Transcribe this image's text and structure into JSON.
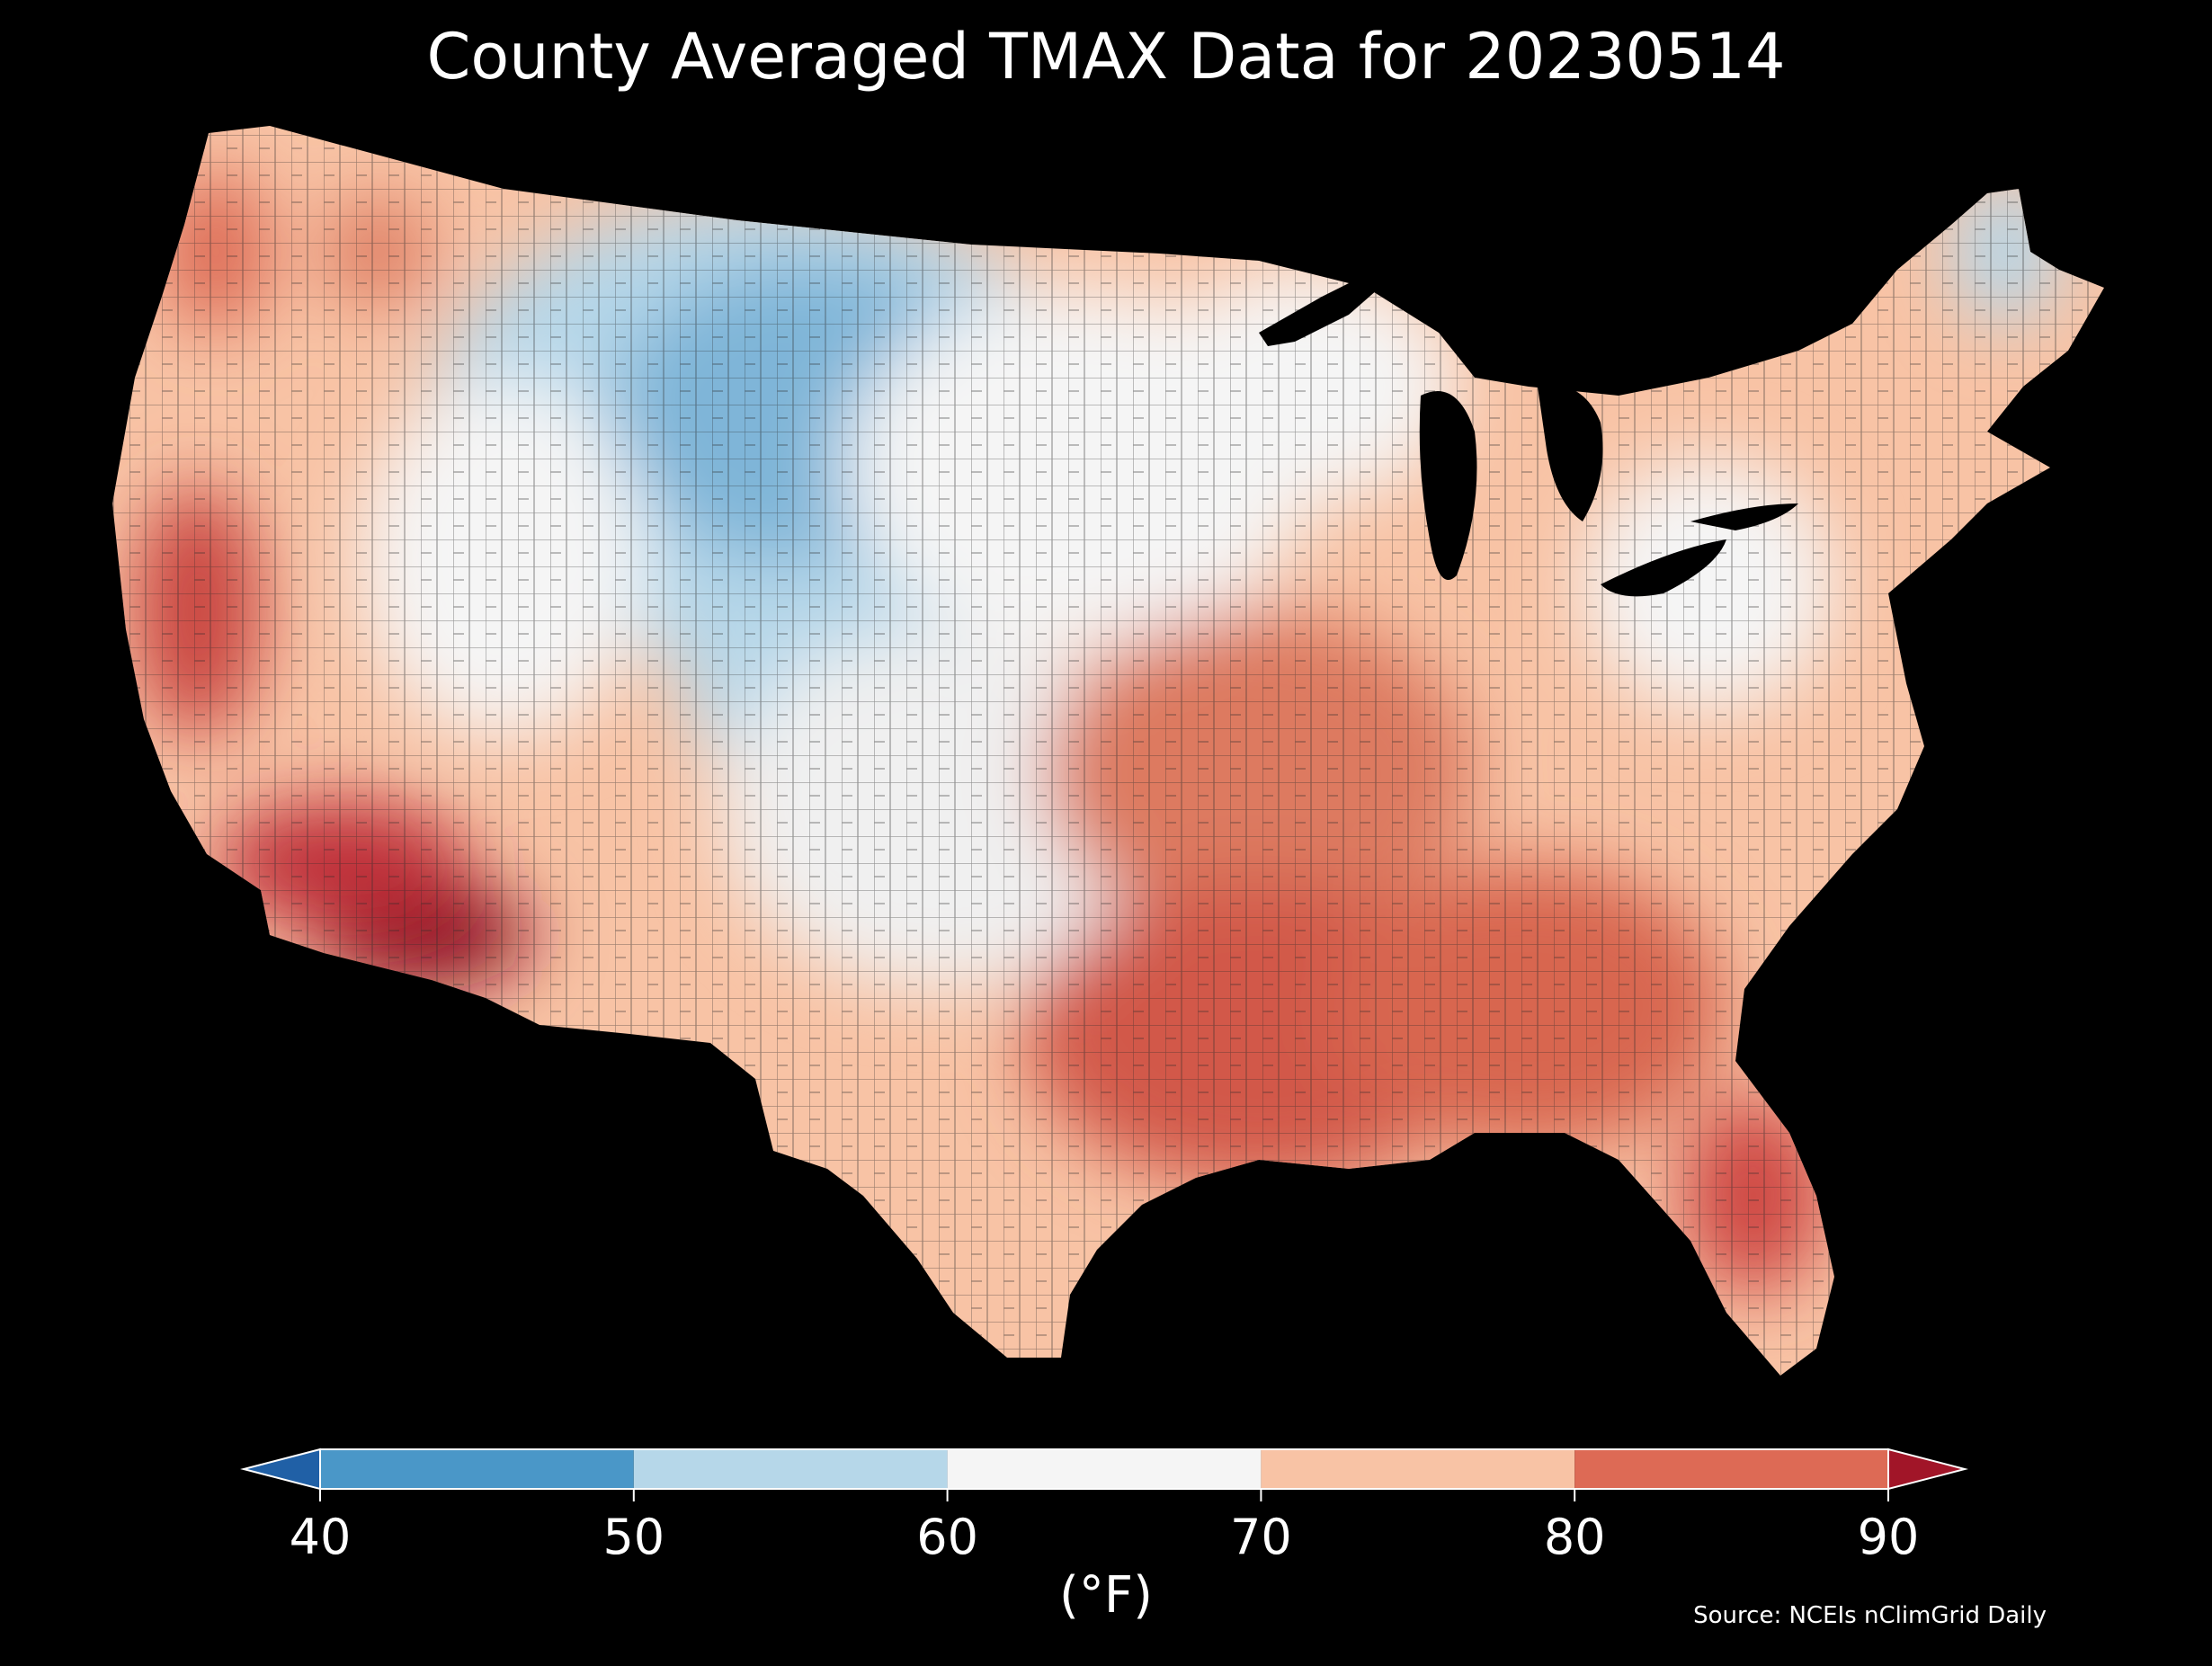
{
  "title": "County Averaged TMAX Data for 20230514",
  "source": "Source: NCEIs nClimGrid Daily",
  "colorbar": {
    "label": "(°F)",
    "ticks": [
      "40",
      "50",
      "60",
      "70",
      "80",
      "90"
    ],
    "range": [
      40,
      90
    ],
    "bins": [
      {
        "from": 40,
        "to": 50,
        "color": "#4a97c8"
      },
      {
        "from": 50,
        "to": 60,
        "color": "#b6d7e9"
      },
      {
        "from": 60,
        "to": 70,
        "color": "#f5f5f5"
      },
      {
        "from": 70,
        "to": 80,
        "color": "#f8c3a5"
      },
      {
        "from": 80,
        "to": 90,
        "color": "#dd6a55"
      }
    ],
    "under_color": "#2060a6",
    "over_color": "#a11528"
  },
  "colors": {
    "background": "#000000",
    "water": "#000000",
    "county_border": "#2a2a2a"
  }
}
